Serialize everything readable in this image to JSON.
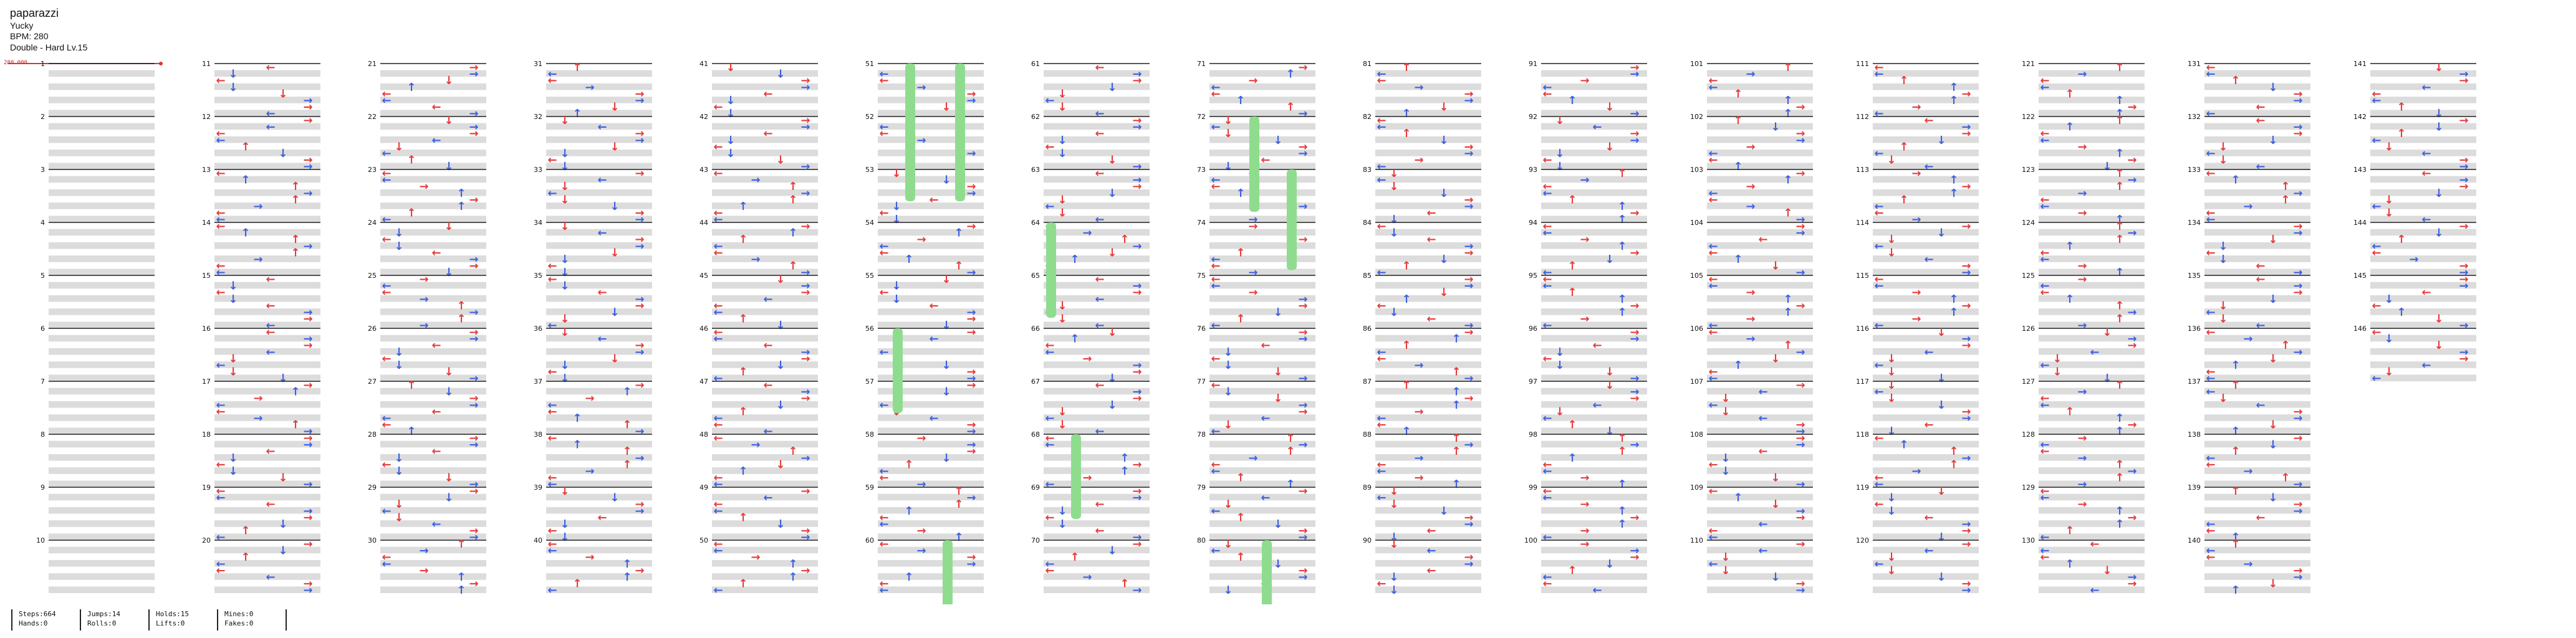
{
  "song": {
    "title": "paparazzi",
    "artist": "Yucky",
    "bpm_text": "BPM: 280",
    "difficulty_text": "Double - Hard  Lv.15"
  },
  "bpm_marker": "280.000",
  "stats": {
    "steps": "Steps:664",
    "hands": "Hands:0",
    "jumps": "Jumps:14",
    "rolls": "Rolls:0",
    "holds": "Holds:15",
    "lifts": "Lifts:0",
    "mines": "Mines:0",
    "fakes": "Fakes:0"
  },
  "colors": {
    "red_arrow": "#e53b3b",
    "blue_arrow": "#3d5fe0",
    "hold_green": "#8fdc8f",
    "purple_arrow": "#b040e0",
    "row_gray": "#dcdcdc",
    "measure_line": "#222222"
  },
  "chart_data": {
    "type": "table",
    "mode": "Double",
    "total_measures": 146,
    "measures_per_column": 10,
    "columns": 15,
    "measure_numbers": [
      "1",
      "2",
      "3",
      "4",
      "5",
      "6",
      "7",
      "8",
      "9",
      "10",
      "11",
      "12",
      "13",
      "14",
      "15",
      "16",
      "17",
      "18",
      "19",
      "20",
      "21",
      "22",
      "23",
      "24",
      "25",
      "26",
      "27",
      "28",
      "29",
      "30",
      "31",
      "32",
      "33",
      "34",
      "35",
      "36",
      "37",
      "38",
      "39",
      "40",
      "41",
      "42",
      "43",
      "44",
      "45",
      "46",
      "47",
      "48",
      "49",
      "50",
      "51",
      "52",
      "53",
      "54",
      "55",
      "56",
      "57",
      "58",
      "59",
      "60",
      "61",
      "62",
      "63",
      "64",
      "65",
      "66",
      "67",
      "68",
      "69",
      "70",
      "71",
      "72",
      "73",
      "74",
      "75",
      "76",
      "77",
      "78",
      "79",
      "80",
      "81",
      "82",
      "83",
      "84",
      "85",
      "86",
      "87",
      "88",
      "89",
      "90",
      "91",
      "92",
      "93",
      "94",
      "95",
      "96",
      "97",
      "98",
      "99",
      "100",
      "101",
      "102",
      "103",
      "104",
      "105",
      "106",
      "107",
      "108",
      "109",
      "110",
      "111",
      "112",
      "113",
      "114",
      "115",
      "116",
      "117",
      "118",
      "119",
      "120",
      "121",
      "122",
      "123",
      "124",
      "125",
      "126",
      "127",
      "128",
      "129",
      "130",
      "131",
      "132",
      "133",
      "134",
      "135",
      "136",
      "137",
      "138",
      "139",
      "140",
      "141",
      "142",
      "143",
      "144",
      "145",
      "146"
    ]
  }
}
